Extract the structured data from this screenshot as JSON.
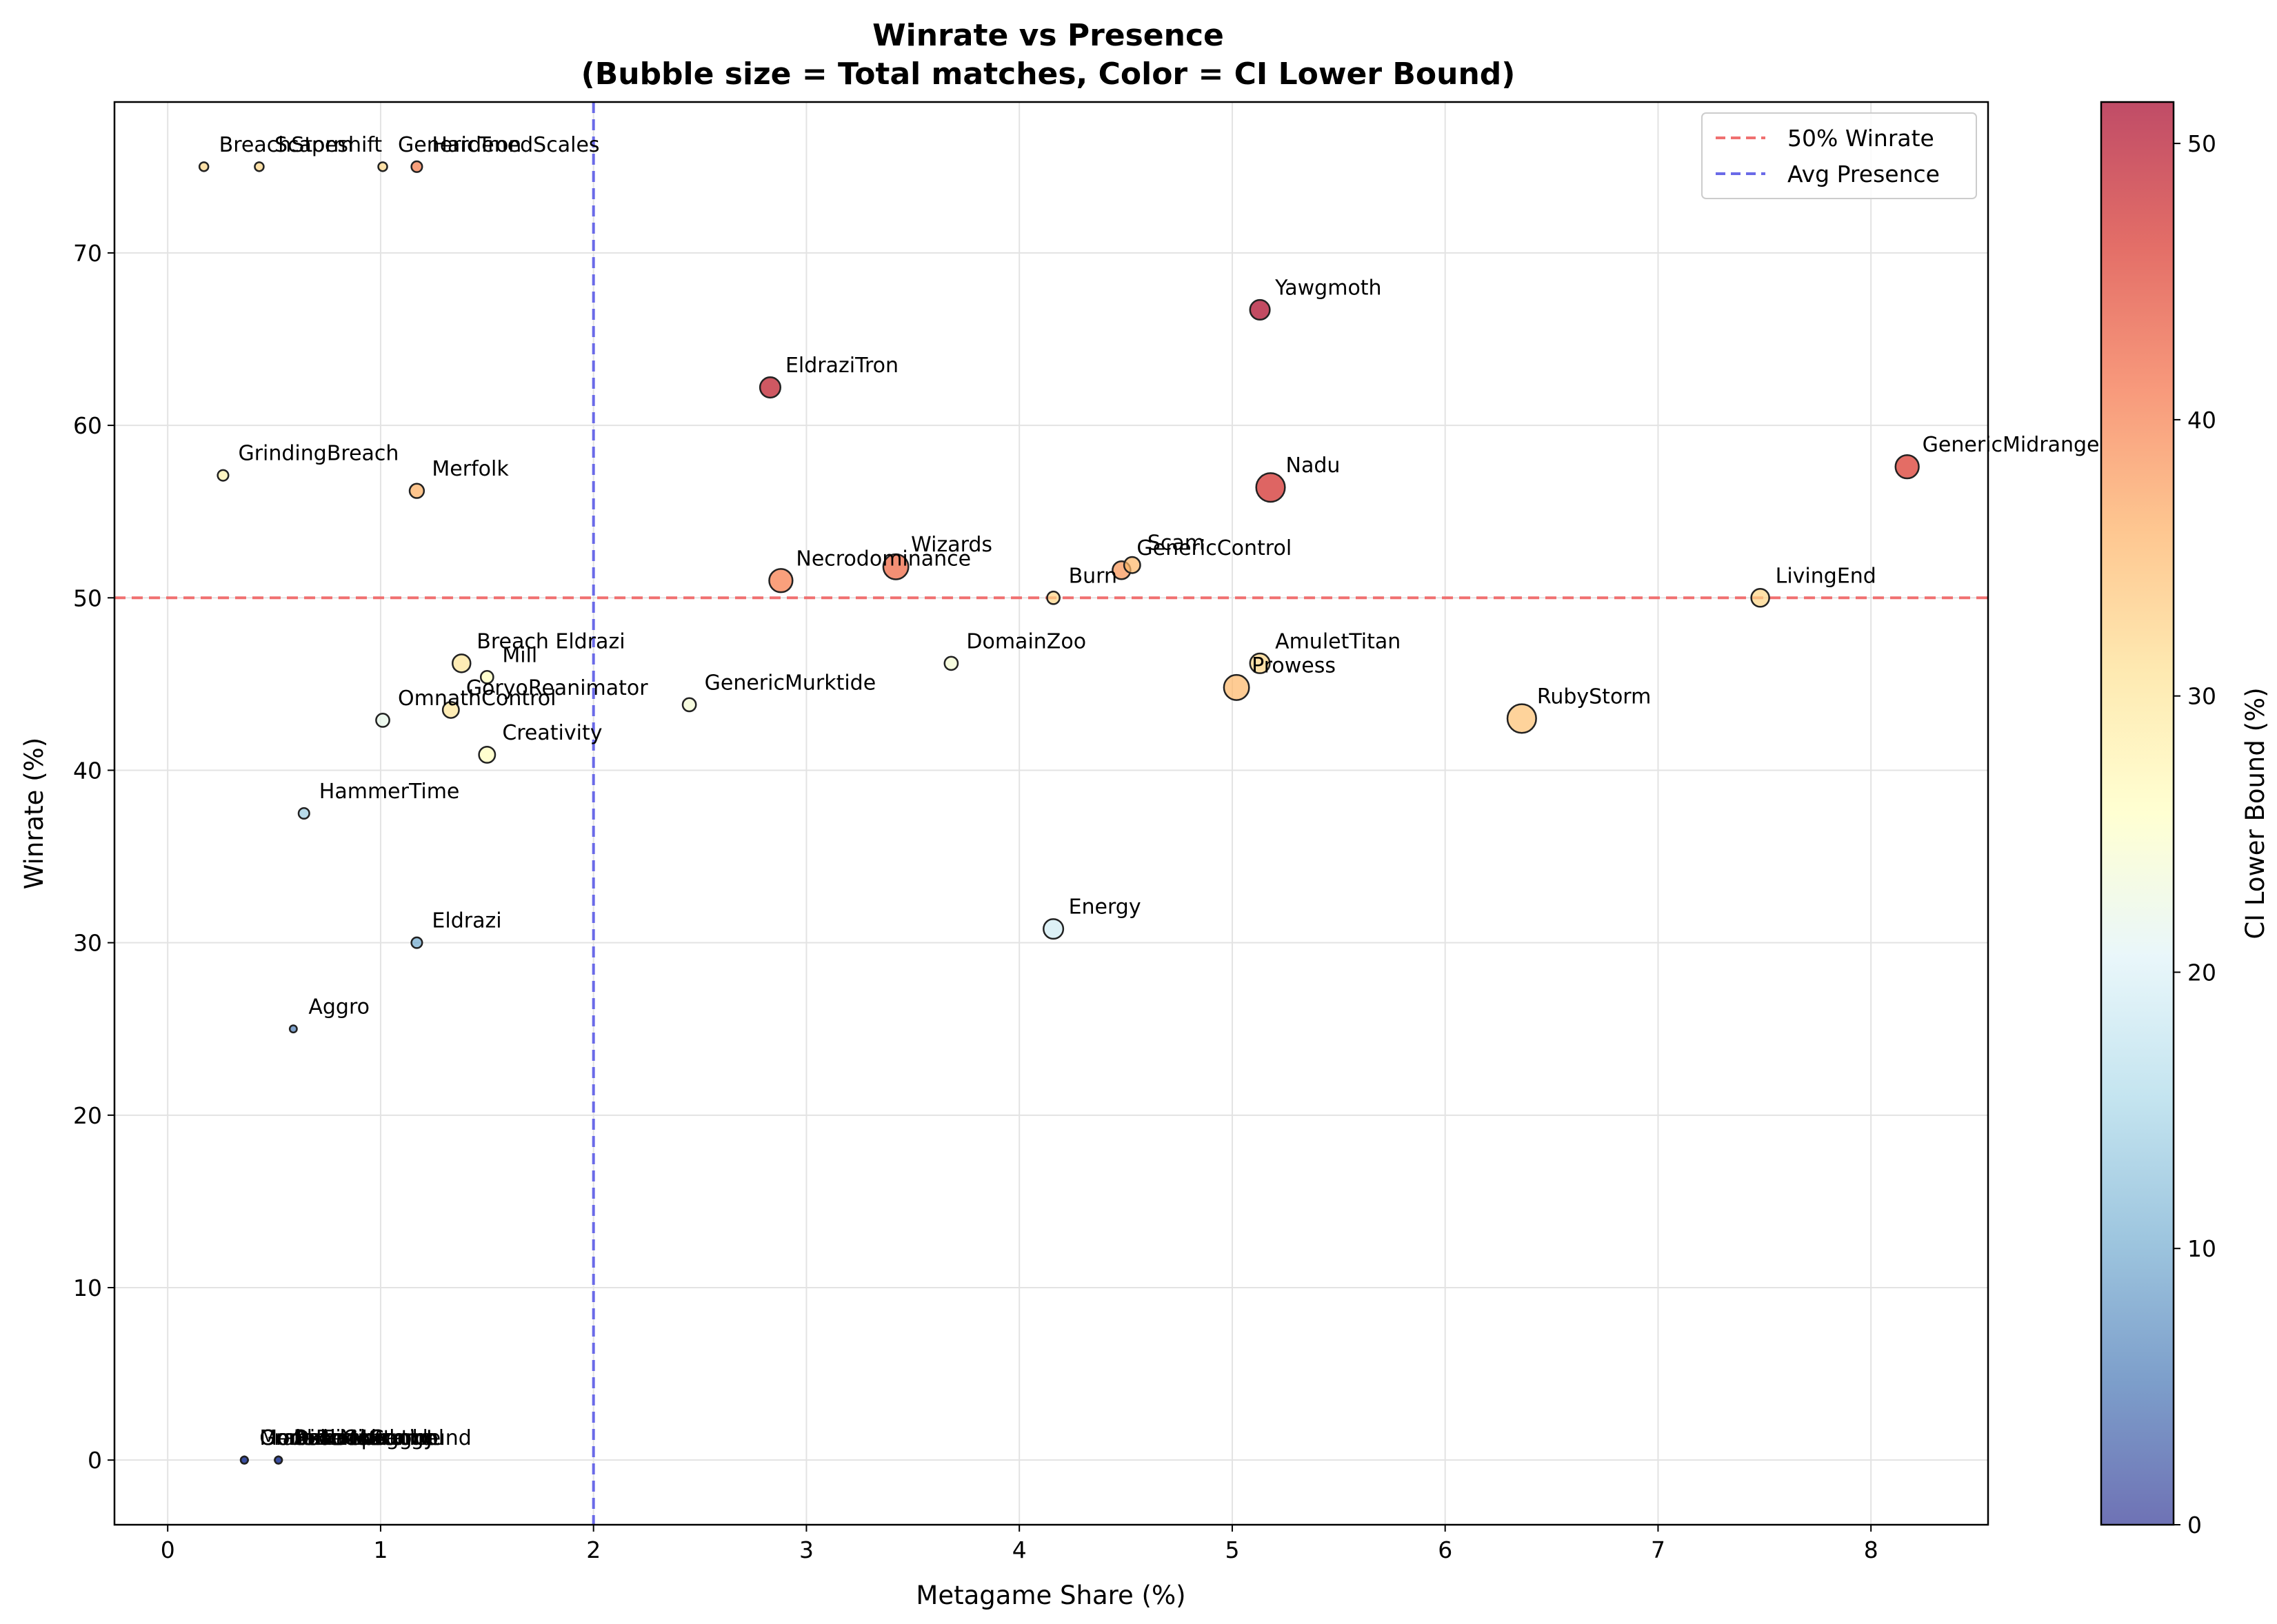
{
  "chart_data": {
    "type": "scatter",
    "title": "Winrate vs Presence",
    "subtitle": "(Bubble size = Total matches, Color = CI Lower Bound)",
    "xlabel": "Metagame Share (%)",
    "ylabel": "Winrate (%)",
    "xlim": [
      -0.25,
      8.55
    ],
    "ylim": [
      -3.75,
      78.75
    ],
    "xticks": [
      "0",
      "1",
      "2",
      "3",
      "4",
      "5",
      "6",
      "7",
      "8"
    ],
    "yticks": [
      "0",
      "10",
      "20",
      "30",
      "40",
      "50",
      "60",
      "70"
    ],
    "grid": true,
    "legend": {
      "position": "top-right",
      "entries": [
        {
          "label": "50% Winrate",
          "color": "#f07070"
        },
        {
          "label": "Avg Presence",
          "color": "#6a6ae8"
        }
      ]
    },
    "reference_lines": {
      "winrate": 50,
      "avg_presence": 2.0
    },
    "colorbar": {
      "label": "CI Lower Bound (%)",
      "range": [
        0,
        51.5
      ],
      "ticks": [
        "0",
        "10",
        "20",
        "30",
        "40",
        "50"
      ]
    },
    "points": [
      {
        "name": "BreachStorm",
        "x": 0.17,
        "y": 75.0,
        "r": 2.5,
        "c": 32
      },
      {
        "name": "Scapeshift",
        "x": 0.43,
        "y": 75.0,
        "r": 2.5,
        "c": 32
      },
      {
        "name": "GenericTron",
        "x": 1.01,
        "y": 75.0,
        "r": 2.5,
        "c": 32
      },
      {
        "name": "HardenedScales",
        "x": 1.17,
        "y": 75.0,
        "r": 3.0,
        "c": 40
      },
      {
        "name": "Yawgmoth",
        "x": 5.13,
        "y": 66.7,
        "r": 5.5,
        "c": 51
      },
      {
        "name": "EldraziTron",
        "x": 2.83,
        "y": 62.2,
        "r": 5.7,
        "c": 49
      },
      {
        "name": "GrindingBreach",
        "x": 0.26,
        "y": 57.1,
        "r": 3.0,
        "c": 28
      },
      {
        "name": "Merfolk",
        "x": 1.17,
        "y": 56.2,
        "r": 4.0,
        "c": 36
      },
      {
        "name": "Nadu",
        "x": 5.18,
        "y": 56.4,
        "r": 8.0,
        "c": 47
      },
      {
        "name": "GenericMidrange",
        "x": 8.17,
        "y": 57.6,
        "r": 6.5,
        "c": 46
      },
      {
        "name": "Wizards",
        "x": 3.42,
        "y": 51.8,
        "r": 7.0,
        "c": 42
      },
      {
        "name": "Necrodominance",
        "x": 2.88,
        "y": 51.0,
        "r": 6.5,
        "c": 40
      },
      {
        "name": "GenericControl",
        "x": 4.48,
        "y": 51.6,
        "r": 5.0,
        "c": 38
      },
      {
        "name": "Scam",
        "x": 4.53,
        "y": 51.9,
        "r": 4.5,
        "c": 35
      },
      {
        "name": "Burn",
        "x": 4.16,
        "y": 50.0,
        "r": 3.5,
        "c": 32
      },
      {
        "name": "LivingEnd",
        "x": 7.48,
        "y": 50.0,
        "r": 5.0,
        "c": 32
      },
      {
        "name": "Breach Eldrazi",
        "x": 1.38,
        "y": 46.2,
        "r": 5.0,
        "c": 30
      },
      {
        "name": "Mill",
        "x": 1.5,
        "y": 45.4,
        "r": 3.5,
        "c": 26
      },
      {
        "name": "GoryoReanimator",
        "x": 1.33,
        "y": 43.5,
        "r": 4.5,
        "c": 30
      },
      {
        "name": "OmnathControl",
        "x": 1.01,
        "y": 42.9,
        "r": 3.7,
        "c": 22
      },
      {
        "name": "Creativity",
        "x": 1.5,
        "y": 40.9,
        "r": 4.5,
        "c": 26
      },
      {
        "name": "GenericMurktide",
        "x": 2.45,
        "y": 43.8,
        "r": 3.7,
        "c": 24
      },
      {
        "name": "DomainZoo",
        "x": 3.68,
        "y": 46.2,
        "r": 3.7,
        "c": 24
      },
      {
        "name": "AmuletTitan",
        "x": 5.13,
        "y": 46.2,
        "r": 5.5,
        "c": 32
      },
      {
        "name": "Prowess",
        "x": 5.02,
        "y": 44.8,
        "r": 7.0,
        "c": 35
      },
      {
        "name": "RubyStorm",
        "x": 6.36,
        "y": 43.0,
        "r": 8.0,
        "c": 34
      },
      {
        "name": "HammerTime",
        "x": 0.64,
        "y": 37.5,
        "r": 3.0,
        "c": 14
      },
      {
        "name": "Eldrazi",
        "x": 1.17,
        "y": 30.0,
        "r": 3.0,
        "c": 10
      },
      {
        "name": "Energy",
        "x": 4.16,
        "y": 30.8,
        "r": 5.5,
        "c": 19
      },
      {
        "name": "Aggro",
        "x": 0.59,
        "y": 25.0,
        "r": 2.0,
        "c": 6
      },
      {
        "name": "GenericMidrange",
        "x": 0.36,
        "y": 0.0,
        "r": 2.0,
        "c": 2
      },
      {
        "name": "OmnathControl",
        "x": 0.36,
        "y": 0.0,
        "r": 2.0,
        "c": 2
      },
      {
        "name": "MonoBlackAggro",
        "x": 0.36,
        "y": 0.0,
        "r": 2.0,
        "c": 2
      },
      {
        "name": "CrabsTempo",
        "x": 0.36,
        "y": 0.0,
        "r": 2.0,
        "c": 2
      },
      {
        "name": "AzoriusControl",
        "x": 0.52,
        "y": 0.0,
        "r": 2.0,
        "c": 2
      },
      {
        "name": "RakdosScamJund",
        "x": 0.52,
        "y": 0.0,
        "r": 2.0,
        "c": 2
      },
      {
        "name": "DimirMurktide",
        "x": 0.52,
        "y": 0.0,
        "r": 2.0,
        "c": 2
      },
      {
        "name": "Shadow",
        "x": 0.52,
        "y": 0.0,
        "r": 2.0,
        "c": 2
      }
    ],
    "overlapping_labels_zero_winrate": [
      "GenericMidrange",
      "OmnathControl",
      "MonoBlackAggro",
      "CrabsTempo",
      "AzoriusControl",
      "RakdosScamJund",
      "DimirMurktide"
    ]
  }
}
